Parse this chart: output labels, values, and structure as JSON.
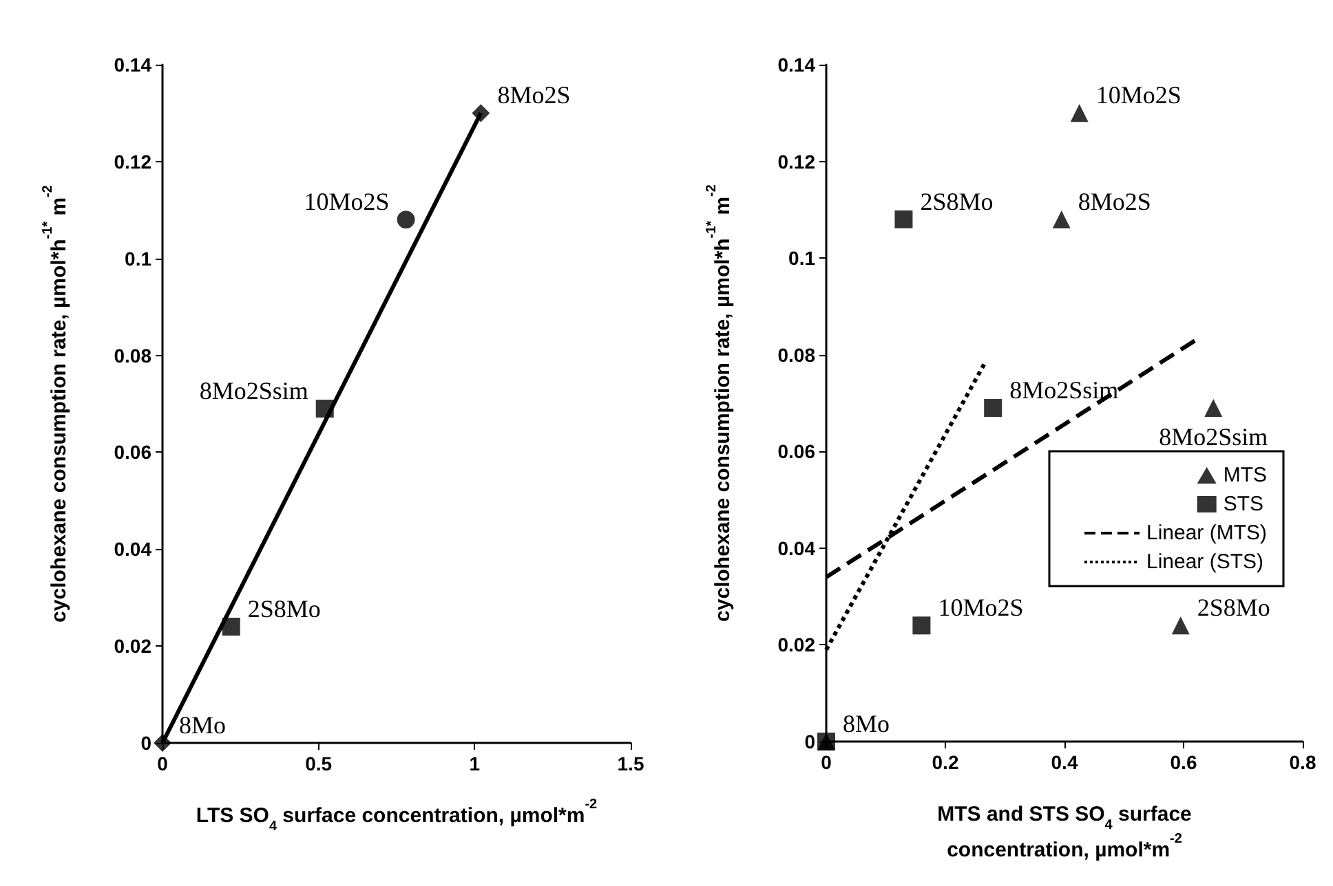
{
  "chart_data": [
    {
      "type": "scatter",
      "xlabel": "LTS SO$_{4}$ surface concentration, µmol*m$^{-2}$",
      "ylabel": "cyclohexane consumption rate, µmol*h$^{-1*}$ m$^{-2}$",
      "xlim": [
        0,
        1.5
      ],
      "xticks": [
        0,
        0.5,
        1,
        1.5
      ],
      "ylim": [
        0,
        0.14
      ],
      "yticks": [
        0,
        0.02,
        0.04,
        0.06,
        0.08,
        0.1,
        0.12,
        0.14
      ],
      "grid": false,
      "legend": false,
      "series": [
        {
          "type": "line",
          "color": "#000000",
          "line_style": "solid",
          "marker": "none",
          "x": [
            0,
            1.02
          ],
          "values": [
            0,
            0.13
          ]
        },
        {
          "color": "#000000",
          "marker": "diamond",
          "x": [
            0,
            1.02
          ],
          "values": [
            0,
            0.13
          ]
        },
        {
          "color": "#000000",
          "marker": "square",
          "x": [
            0.22,
            0.52
          ],
          "values": [
            0.024,
            0.069
          ]
        },
        {
          "color": "#000000",
          "marker": "circle",
          "x": [
            0.78
          ],
          "values": [
            0.108
          ]
        }
      ],
      "annotations": [
        {
          "text": "8Mo",
          "x": 0,
          "y": 0
        },
        {
          "text": "2S8Mo",
          "x": 0.22,
          "y": 0.024
        },
        {
          "text": "8Mo2Ssim",
          "x": 0.52,
          "y": 0.069
        },
        {
          "text": "10Mo2S",
          "x": 0.78,
          "y": 0.108
        },
        {
          "text": "8Mo2S",
          "x": 1.02,
          "y": 0.13
        }
      ]
    },
    {
      "type": "scatter",
      "xlabel": "MTS and STS SO$_{4}$ surface\nconcentration, µmol*m$^{-2}$",
      "ylabel": "cyclohexane consumption rate, µmol*h$^{-1*}$ m$^{-2}$",
      "xlim": [
        0,
        0.8
      ],
      "xticks": [
        0,
        0.2,
        0.4,
        0.6,
        0.8
      ],
      "ylim": [
        0,
        0.14
      ],
      "yticks": [
        0,
        0.02,
        0.04,
        0.06,
        0.08,
        0.1,
        0.12,
        0.14
      ],
      "grid": false,
      "legend": "right",
      "series": [
        {
          "name": "MTS",
          "color": "#000000",
          "marker": "triangle",
          "x": [
            0,
            0.425,
            0.395,
            0.65,
            0.595
          ],
          "values": [
            0,
            0.13,
            0.108,
            0.069,
            0.024
          ]
        },
        {
          "name": "STS",
          "color": "#000000",
          "marker": "square",
          "x": [
            0,
            0.13,
            0.16,
            0.28
          ],
          "values": [
            0,
            0.108,
            0.024,
            0.069
          ]
        },
        {
          "name": "Linear (MTS)",
          "type": "line",
          "color": "#000000",
          "line_style": "dashed",
          "marker": "none",
          "x": [
            0,
            0.62
          ],
          "values": [
            0.034,
            0.083
          ]
        },
        {
          "name": "Linear (STS)",
          "type": "line",
          "color": "#000000",
          "line_style": "dotted",
          "marker": "none",
          "x": [
            0,
            0.265
          ],
          "values": [
            0.019,
            0.078
          ]
        }
      ],
      "annotations": [
        {
          "text": "8Mo",
          "x": 0,
          "y": 0
        },
        {
          "text": "10Mo2S",
          "x": 0.425,
          "y": 0.13
        },
        {
          "text": "8Mo2S",
          "x": 0.395,
          "y": 0.108
        },
        {
          "text": "8Mo2Ssim",
          "x": 0.65,
          "y": 0.069
        },
        {
          "text": "2S8Mo",
          "x": 0.595,
          "y": 0.024
        },
        {
          "text": "2S8Mo",
          "x": 0.13,
          "y": 0.108
        },
        {
          "text": "10Mo2S",
          "x": 0.16,
          "y": 0.024
        },
        {
          "text": "8Mo2Ssim",
          "x": 0.28,
          "y": 0.069
        }
      ]
    }
  ]
}
